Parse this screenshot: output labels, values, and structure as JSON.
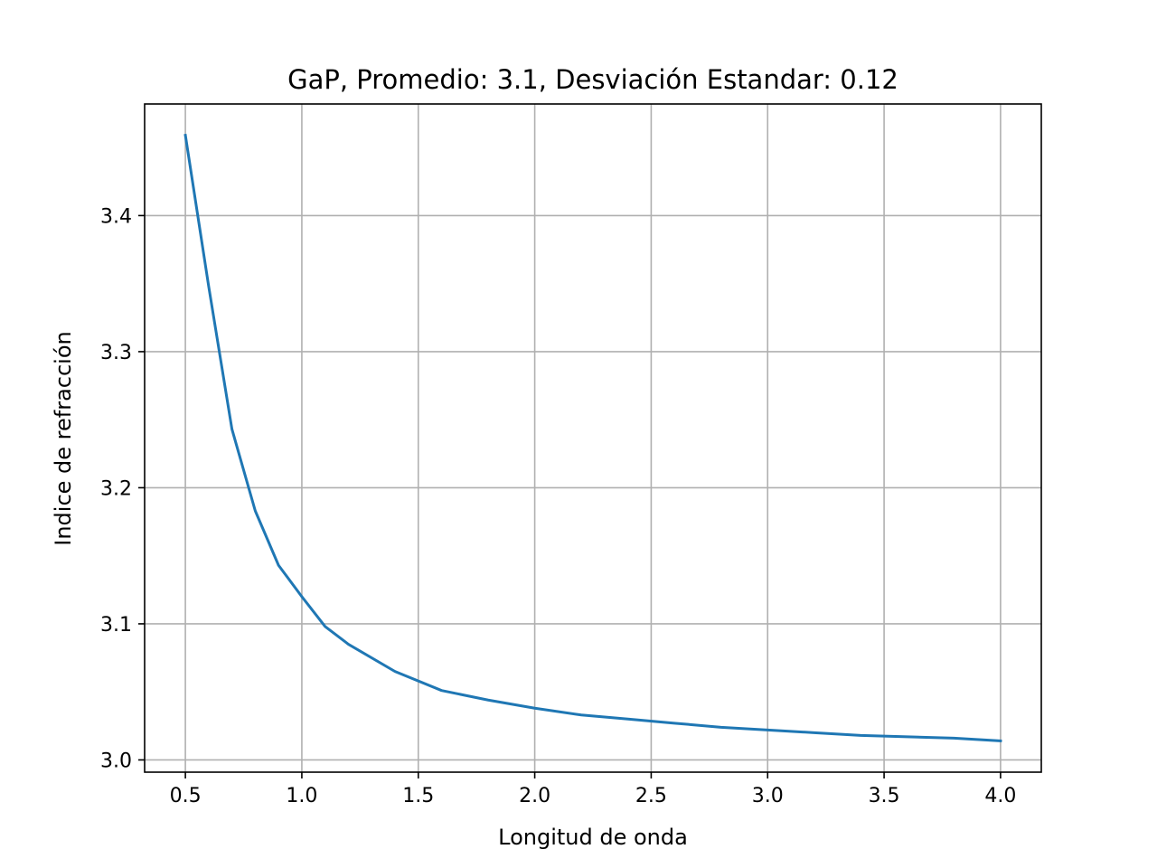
{
  "chart_data": {
    "type": "line",
    "title": "GaP, Promedio: 3.1, Desviación Estandar: 0.12",
    "xlabel": "Longitud de onda",
    "ylabel": "Indice de refracción",
    "xlim": [
      0.325,
      4.175
    ],
    "ylim": [
      2.991,
      3.482
    ],
    "xticks": [
      0.5,
      1.0,
      1.5,
      2.0,
      2.5,
      3.0,
      3.5,
      4.0
    ],
    "xtick_labels": [
      "0.5",
      "1.0",
      "1.5",
      "2.0",
      "2.5",
      "3.0",
      "3.5",
      "4.0"
    ],
    "yticks": [
      3.0,
      3.1,
      3.2,
      3.3,
      3.4
    ],
    "ytick_labels": [
      "3.0",
      "3.1",
      "3.2",
      "3.3",
      "3.4"
    ],
    "grid": true,
    "series": [
      {
        "color": "#1f77b4",
        "x": [
          0.5,
          0.6,
          0.7,
          0.8,
          0.9,
          1.0,
          1.1,
          1.2,
          1.4,
          1.6,
          1.8,
          2.0,
          2.2,
          2.4,
          2.6,
          2.8,
          3.0,
          3.2,
          3.4,
          3.6,
          3.8,
          4.0
        ],
        "y": [
          3.459,
          3.348,
          3.243,
          3.183,
          3.143,
          3.12,
          3.098,
          3.085,
          3.065,
          3.051,
          3.044,
          3.038,
          3.033,
          3.03,
          3.027,
          3.024,
          3.022,
          3.02,
          3.018,
          3.017,
          3.016,
          3.014
        ]
      }
    ]
  }
}
